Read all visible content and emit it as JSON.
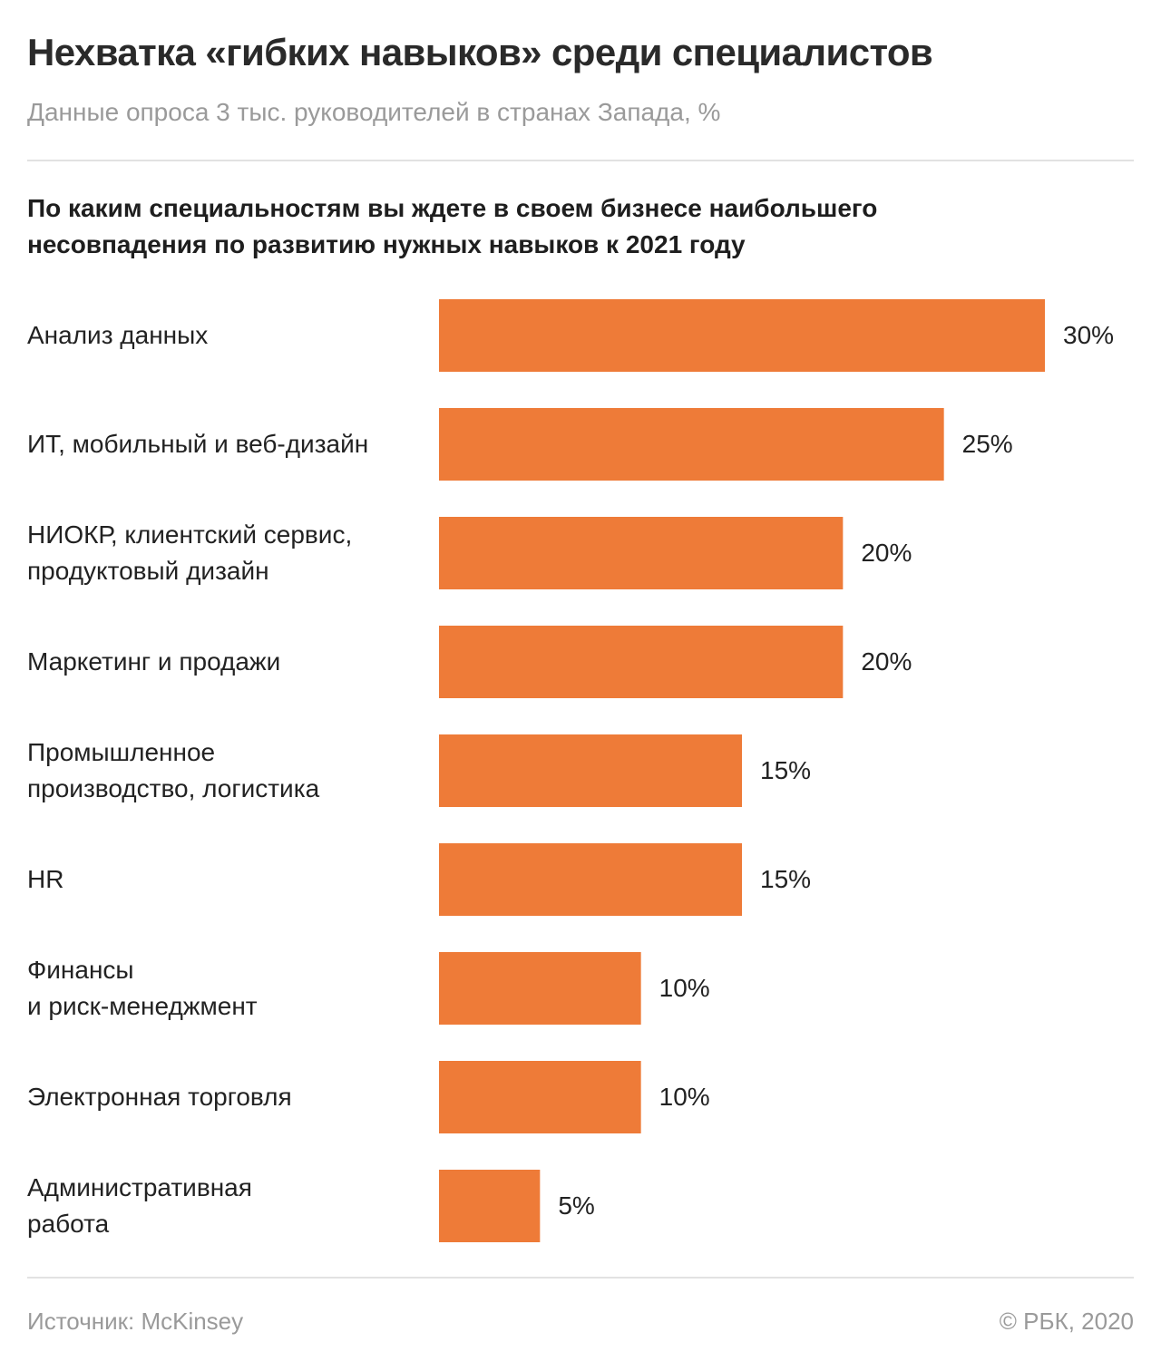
{
  "chart_data": {
    "type": "bar",
    "orientation": "horizontal",
    "title": "Нехватка «гибких навыков» среди специалистов",
    "subtitle": "Данные опроса 3 тыс. руководителей в странах Запада, %",
    "question": "По каким специальностям вы ждете в своем бизнесе наибольшего несовпадения по развитию нужных навыков к 2021 году",
    "categories": [
      "Анализ данных",
      "ИТ, мобильный и веб-дизайн",
      "НИОКР, клиентский сервис,\nпродуктовый дизайн",
      "Маркетинг и продажи",
      "Промышленное\nпроизводство, логистика",
      "HR",
      "Финансы\nи риск-менеджмент",
      "Электронная торговля",
      "Административная\nработа"
    ],
    "values": [
      30,
      25,
      20,
      20,
      15,
      15,
      10,
      10,
      5
    ],
    "value_labels": [
      "30%",
      "25%",
      "20%",
      "20%",
      "15%",
      "15%",
      "10%",
      "10%",
      "5%"
    ],
    "color": "#ee7b38",
    "source": "Источник: McKinsey",
    "copyright": "© РБК, 2020"
  }
}
